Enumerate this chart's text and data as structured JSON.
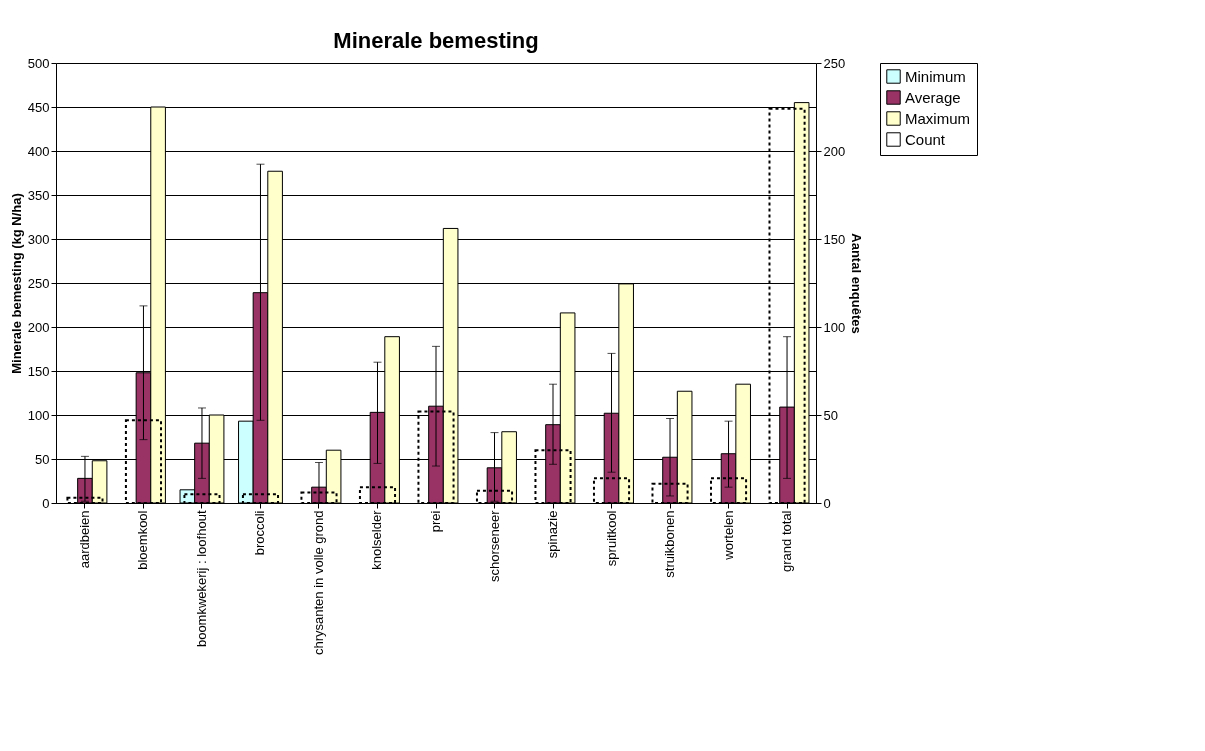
{
  "chart_data": {
    "type": "bar",
    "title": "Minerale bemesting",
    "ylabel": "Minerale bemesting (kg N/ha)",
    "y2label": "Aantal enquêtes",
    "categories": [
      "aardbeien",
      "bloemkool",
      "boomkwekerij : loofhout",
      "broccoli",
      "chrysanten in volle grond",
      "knolselder",
      "prei",
      "schorseneer",
      "spinazie",
      "spruitkool",
      "struikbonen",
      "wortelen",
      "grand total"
    ],
    "series": [
      {
        "name": "Minimum",
        "color": "#ccffff",
        "values": [
          null,
          null,
          15,
          93,
          null,
          null,
          null,
          null,
          null,
          null,
          null,
          null,
          null
        ]
      },
      {
        "name": "Average",
        "color": "#993366",
        "values": [
          28,
          148,
          68,
          239,
          18,
          103,
          110,
          40,
          89,
          102,
          52,
          56,
          109
        ],
        "errors": [
          [
            2,
            53
          ],
          [
            72,
            224
          ],
          [
            28,
            108
          ],
          [
            94,
            385
          ],
          [
            0,
            46
          ],
          [
            45,
            160
          ],
          [
            42,
            178
          ],
          [
            2,
            80
          ],
          [
            44,
            135
          ],
          [
            35,
            170
          ],
          [
            8,
            96
          ],
          [
            18,
            93
          ],
          [
            28,
            189
          ]
        ]
      },
      {
        "name": "Maximum",
        "color": "#ffffcc",
        "values": [
          48,
          450,
          100,
          377,
          60,
          189,
          312,
          81,
          216,
          249,
          127,
          135,
          455
        ]
      },
      {
        "name": "Count",
        "color": "#000000",
        "axis": "y2",
        "line_style": "dashed",
        "values": [
          3,
          47,
          5,
          5,
          6,
          9,
          52,
          7,
          30,
          14,
          11,
          14,
          224
        ]
      }
    ],
    "ylim": [
      0,
      500
    ],
    "yticks": [
      0,
      50,
      100,
      150,
      200,
      250,
      300,
      350,
      400,
      450,
      500
    ],
    "y2lim": [
      0,
      250
    ],
    "y2ticks": [
      0,
      50,
      100,
      150,
      200,
      250
    ],
    "grid": "y",
    "legend": "right"
  }
}
